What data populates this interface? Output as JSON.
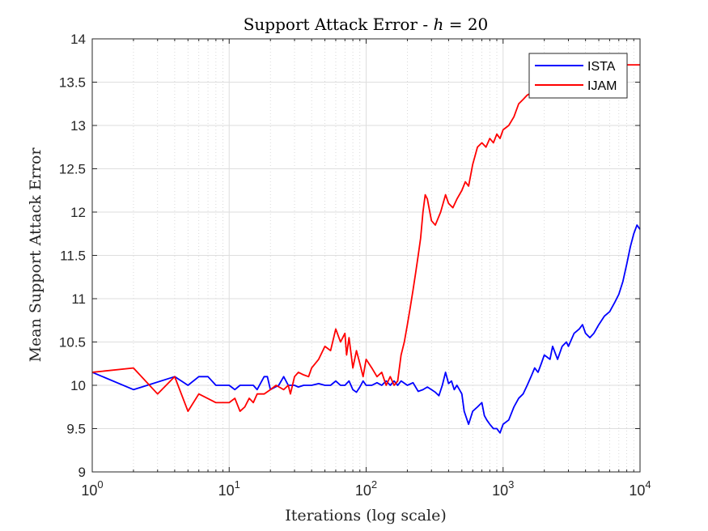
{
  "chart_data": {
    "type": "line",
    "title_prefix": "Support Attack Error - ",
    "title_var": "h",
    "title_suffix": " = 20",
    "xlabel": "Iterations (log scale)",
    "ylabel": "Mean Support Attack Error",
    "xscale": "log",
    "xlim": [
      1,
      10000
    ],
    "ylim": [
      9,
      14
    ],
    "yticks": [
      "9",
      "9.5",
      "10",
      "10.5",
      "11",
      "11.5",
      "12",
      "12.5",
      "13",
      "13.5",
      "14"
    ],
    "xticks": [
      {
        "base": "10",
        "exp": "0"
      },
      {
        "base": "10",
        "exp": "1"
      },
      {
        "base": "10",
        "exp": "2"
      },
      {
        "base": "10",
        "exp": "3"
      },
      {
        "base": "10",
        "exp": "4"
      }
    ],
    "grid": true,
    "legend_position": "top-right",
    "series": [
      {
        "name": "ISTA",
        "color": "#0000ff",
        "points": [
          [
            1,
            10.15
          ],
          [
            2,
            9.95
          ],
          [
            4,
            10.1
          ],
          [
            5,
            10.0
          ],
          [
            6,
            10.1
          ],
          [
            7,
            10.1
          ],
          [
            8,
            10.0
          ],
          [
            10,
            10.0
          ],
          [
            11,
            9.95
          ],
          [
            12,
            10.0
          ],
          [
            15,
            10.0
          ],
          [
            16,
            9.95
          ],
          [
            18,
            10.1
          ],
          [
            19,
            10.1
          ],
          [
            20,
            9.95
          ],
          [
            23,
            10.0
          ],
          [
            25,
            10.1
          ],
          [
            27,
            10.0
          ],
          [
            30,
            10.0
          ],
          [
            32,
            9.98
          ],
          [
            35,
            10.0
          ],
          [
            40,
            10.0
          ],
          [
            45,
            10.02
          ],
          [
            50,
            10.0
          ],
          [
            55,
            10.0
          ],
          [
            60,
            10.05
          ],
          [
            65,
            10.0
          ],
          [
            70,
            10.0
          ],
          [
            75,
            10.05
          ],
          [
            80,
            9.95
          ],
          [
            85,
            9.92
          ],
          [
            90,
            9.98
          ],
          [
            95,
            10.05
          ],
          [
            100,
            10.0
          ],
          [
            110,
            10.0
          ],
          [
            120,
            10.03
          ],
          [
            130,
            10.0
          ],
          [
            140,
            10.05
          ],
          [
            150,
            10.0
          ],
          [
            160,
            10.05
          ],
          [
            170,
            10.0
          ],
          [
            180,
            10.05
          ],
          [
            200,
            10.0
          ],
          [
            220,
            10.03
          ],
          [
            240,
            9.93
          ],
          [
            260,
            9.95
          ],
          [
            280,
            9.98
          ],
          [
            300,
            9.95
          ],
          [
            320,
            9.92
          ],
          [
            340,
            9.88
          ],
          [
            360,
            10.0
          ],
          [
            380,
            10.15
          ],
          [
            400,
            10.02
          ],
          [
            420,
            10.05
          ],
          [
            440,
            9.95
          ],
          [
            460,
            10.0
          ],
          [
            480,
            9.95
          ],
          [
            500,
            9.9
          ],
          [
            520,
            9.7
          ],
          [
            560,
            9.55
          ],
          [
            600,
            9.7
          ],
          [
            650,
            9.75
          ],
          [
            700,
            9.8
          ],
          [
            730,
            9.65
          ],
          [
            760,
            9.6
          ],
          [
            800,
            9.55
          ],
          [
            850,
            9.5
          ],
          [
            900,
            9.5
          ],
          [
            950,
            9.45
          ],
          [
            1000,
            9.55
          ],
          [
            1100,
            9.6
          ],
          [
            1200,
            9.75
          ],
          [
            1300,
            9.85
          ],
          [
            1400,
            9.9
          ],
          [
            1500,
            10.0
          ],
          [
            1600,
            10.1
          ],
          [
            1700,
            10.2
          ],
          [
            1800,
            10.15
          ],
          [
            1900,
            10.25
          ],
          [
            2000,
            10.35
          ],
          [
            2200,
            10.3
          ],
          [
            2300,
            10.45
          ],
          [
            2500,
            10.3
          ],
          [
            2700,
            10.45
          ],
          [
            2900,
            10.5
          ],
          [
            3000,
            10.45
          ],
          [
            3300,
            10.6
          ],
          [
            3600,
            10.65
          ],
          [
            3800,
            10.7
          ],
          [
            4000,
            10.6
          ],
          [
            4300,
            10.55
          ],
          [
            4600,
            10.6
          ],
          [
            5000,
            10.7
          ],
          [
            5500,
            10.8
          ],
          [
            6000,
            10.85
          ],
          [
            6500,
            10.95
          ],
          [
            7000,
            11.05
          ],
          [
            7500,
            11.2
          ],
          [
            8000,
            11.4
          ],
          [
            8500,
            11.6
          ],
          [
            9000,
            11.75
          ],
          [
            9500,
            11.85
          ],
          [
            10000,
            11.8
          ]
        ]
      },
      {
        "name": "IJAM",
        "color": "#ff0000",
        "points": [
          [
            1,
            10.15
          ],
          [
            2,
            10.2
          ],
          [
            3,
            9.9
          ],
          [
            4,
            10.1
          ],
          [
            5,
            9.7
          ],
          [
            6,
            9.9
          ],
          [
            8,
            9.8
          ],
          [
            10,
            9.8
          ],
          [
            11,
            9.85
          ],
          [
            12,
            9.7
          ],
          [
            13,
            9.75
          ],
          [
            14,
            9.85
          ],
          [
            15,
            9.8
          ],
          [
            16,
            9.9
          ],
          [
            18,
            9.9
          ],
          [
            20,
            9.95
          ],
          [
            22,
            10.0
          ],
          [
            25,
            9.95
          ],
          [
            27,
            10.0
          ],
          [
            28,
            9.9
          ],
          [
            30,
            10.1
          ],
          [
            32,
            10.15
          ],
          [
            35,
            10.12
          ],
          [
            38,
            10.1
          ],
          [
            40,
            10.2
          ],
          [
            45,
            10.3
          ],
          [
            50,
            10.45
          ],
          [
            55,
            10.4
          ],
          [
            60,
            10.65
          ],
          [
            65,
            10.5
          ],
          [
            70,
            10.6
          ],
          [
            72,
            10.35
          ],
          [
            75,
            10.55
          ],
          [
            80,
            10.2
          ],
          [
            85,
            10.4
          ],
          [
            90,
            10.25
          ],
          [
            95,
            10.1
          ],
          [
            100,
            10.3
          ],
          [
            110,
            10.2
          ],
          [
            120,
            10.1
          ],
          [
            130,
            10.15
          ],
          [
            140,
            10.0
          ],
          [
            150,
            10.1
          ],
          [
            160,
            10.0
          ],
          [
            170,
            10.05
          ],
          [
            180,
            10.35
          ],
          [
            190,
            10.5
          ],
          [
            200,
            10.7
          ],
          [
            210,
            10.9
          ],
          [
            220,
            11.1
          ],
          [
            230,
            11.3
          ],
          [
            240,
            11.5
          ],
          [
            250,
            11.7
          ],
          [
            260,
            12.0
          ],
          [
            270,
            12.2
          ],
          [
            280,
            12.15
          ],
          [
            300,
            11.9
          ],
          [
            320,
            11.85
          ],
          [
            350,
            12.0
          ],
          [
            380,
            12.2
          ],
          [
            400,
            12.1
          ],
          [
            430,
            12.05
          ],
          [
            460,
            12.15
          ],
          [
            500,
            12.25
          ],
          [
            530,
            12.35
          ],
          [
            560,
            12.3
          ],
          [
            600,
            12.55
          ],
          [
            650,
            12.75
          ],
          [
            700,
            12.8
          ],
          [
            750,
            12.75
          ],
          [
            800,
            12.85
          ],
          [
            850,
            12.8
          ],
          [
            900,
            12.9
          ],
          [
            950,
            12.85
          ],
          [
            1000,
            12.95
          ],
          [
            1100,
            13.0
          ],
          [
            1200,
            13.1
          ],
          [
            1300,
            13.25
          ],
          [
            1400,
            13.3
          ],
          [
            1500,
            13.35
          ],
          [
            1700,
            13.4
          ],
          [
            2000,
            13.55
          ],
          [
            2500,
            13.65
          ],
          [
            3000,
            13.7
          ],
          [
            10000,
            13.7
          ]
        ]
      }
    ]
  }
}
